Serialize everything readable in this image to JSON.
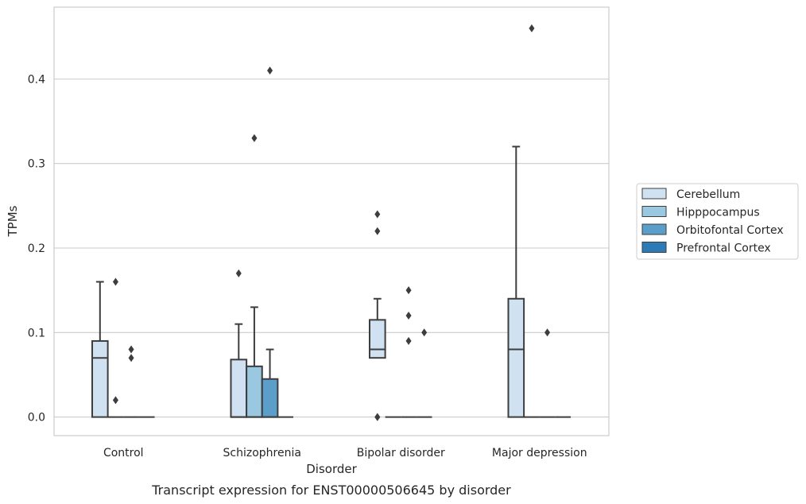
{
  "chart_data": {
    "type": "boxplot",
    "caption": "Transcript expression for ENST00000506645 by disorder",
    "xlabel": "Disorder",
    "ylabel": "TPMs",
    "ylim": [
      -0.022,
      0.485
    ],
    "yticks": [
      "0.0",
      "0.1",
      "0.2",
      "0.3",
      "0.4"
    ],
    "grid": true,
    "legend_position": "right",
    "categories": [
      "Control",
      "Schizophrenia",
      "Bipolar disorder",
      "Major depression"
    ],
    "series": [
      {
        "name": "Cerebellum",
        "color": "#d0e1f2",
        "boxes": [
          {
            "q1": 0,
            "median": 0.07,
            "q3": 0.09,
            "whisker_low": 0,
            "whisker_high": 0.16,
            "outliers": []
          },
          {
            "q1": 0,
            "median": 0,
            "q3": 0.068,
            "whisker_low": 0,
            "whisker_high": 0.11,
            "outliers": [
              0.17
            ]
          },
          {
            "q1": 0.07,
            "median": 0.08,
            "q3": 0.115,
            "whisker_low": 0.07,
            "whisker_high": 0.14,
            "outliers": [
              0.22,
              0.24,
              0.0,
              0.0
            ]
          },
          {
            "q1": 0,
            "median": 0.08,
            "q3": 0.14,
            "whisker_low": 0,
            "whisker_high": 0.32,
            "outliers": []
          }
        ]
      },
      {
        "name": "Hipppocampus",
        "color": "#9ac8e0",
        "boxes": [
          {
            "q1": 0,
            "median": 0,
            "q3": 0,
            "whisker_low": 0,
            "whisker_high": 0,
            "outliers": [
              0.02,
              0.16
            ]
          },
          {
            "q1": 0,
            "median": 0,
            "q3": 0.06,
            "whisker_low": 0,
            "whisker_high": 0.13,
            "outliers": [
              0.33
            ]
          },
          {
            "q1": 0,
            "median": 0,
            "q3": 0,
            "whisker_low": 0,
            "whisker_high": 0,
            "outliers": []
          },
          {
            "q1": 0,
            "median": 0,
            "q3": 0,
            "whisker_low": 0,
            "whisker_high": 0,
            "outliers": [
              0.46
            ]
          }
        ]
      },
      {
        "name": "Orbitofontal Cortex",
        "color": "#5a9ec9",
        "boxes": [
          {
            "q1": 0,
            "median": 0,
            "q3": 0,
            "whisker_low": 0,
            "whisker_high": 0,
            "outliers": [
              0.07,
              0.08
            ]
          },
          {
            "q1": 0,
            "median": 0,
            "q3": 0.045,
            "whisker_low": 0,
            "whisker_high": 0.08,
            "outliers": [
              0.41
            ]
          },
          {
            "q1": 0,
            "median": 0,
            "q3": 0,
            "whisker_low": 0,
            "whisker_high": 0,
            "outliers": [
              0.09,
              0.12,
              0.15
            ]
          },
          {
            "q1": 0,
            "median": 0,
            "q3": 0,
            "whisker_low": 0,
            "whisker_high": 0,
            "outliers": [
              0.1
            ]
          }
        ]
      },
      {
        "name": "Prefrontal Cortex",
        "color": "#2d7bb6",
        "boxes": [
          {
            "q1": 0,
            "median": 0,
            "q3": 0,
            "whisker_low": 0,
            "whisker_high": 0,
            "outliers": []
          },
          {
            "q1": 0,
            "median": 0,
            "q3": 0,
            "whisker_low": 0,
            "whisker_high": 0,
            "outliers": []
          },
          {
            "q1": 0,
            "median": 0,
            "q3": 0,
            "whisker_low": 0,
            "whisker_high": 0,
            "outliers": [
              0.1
            ]
          },
          {
            "q1": 0,
            "median": 0,
            "q3": 0,
            "whisker_low": 0,
            "whisker_high": 0,
            "outliers": []
          }
        ]
      }
    ]
  }
}
